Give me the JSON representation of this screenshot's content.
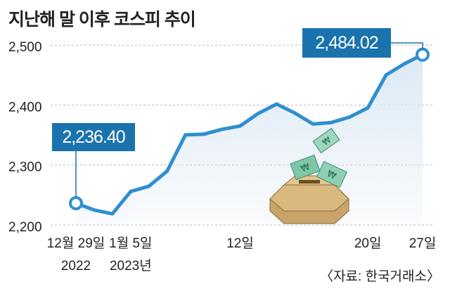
{
  "title": "지난해 말 이후 코스피 추이",
  "source": "〈자료: 한국거래소〉",
  "colors": {
    "line": "#2f8fd0",
    "area": "#dce9f4",
    "callout_bg": "#1a73ad",
    "axis_text": "#222222",
    "grid": "#b9b9b9"
  },
  "callouts": {
    "start": "2,236.40",
    "end": "2,484.02"
  },
  "illustration": "money-box-icon",
  "chart_data": {
    "type": "area",
    "title": "지난해 말 이후 코스피 추이",
    "xlabel": "",
    "ylabel": "",
    "ylim": [
      2200,
      2520
    ],
    "yticks": [
      2200,
      2300,
      2400,
      2500
    ],
    "ytick_labels": [
      "2,200",
      "2,300",
      "2,400",
      "2,500"
    ],
    "grid": "horizontal dashed",
    "xticks": [
      {
        "index": 0,
        "label": "12월 29일",
        "sublabel": "2022"
      },
      {
        "index": 3,
        "label": "1월 5일",
        "sublabel": "2023년"
      },
      {
        "index": 9,
        "label": "12일",
        "sublabel": ""
      },
      {
        "index": 16,
        "label": "20일",
        "sublabel": ""
      },
      {
        "index": 19,
        "label": "27일",
        "sublabel": ""
      }
    ],
    "series": [
      {
        "values": [
          2236.4,
          2225,
          2218.7,
          2255.9,
          2264.7,
          2289.9,
          2350.2,
          2351.3,
          2359.5,
          2365.1,
          2386.1,
          2401.6,
          2386.6,
          2368.3,
          2370.9,
          2379.9,
          2395.3,
          2450.1,
          2468.7,
          2484.02
        ]
      }
    ],
    "annotations": [
      {
        "index": 0,
        "text": "2,236.40"
      },
      {
        "index": 19,
        "text": "2,484.02"
      }
    ]
  }
}
